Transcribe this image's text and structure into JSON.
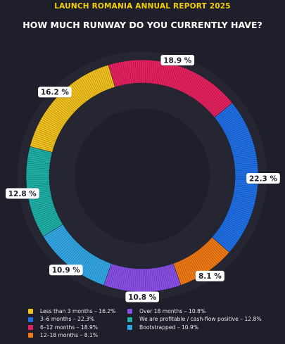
{
  "header": {
    "report_title": "LAUNCH ROMANIA ANNUAL REPORT 2025"
  },
  "chart_data": {
    "type": "pie",
    "title": "HOW MUCH RUNWAY DO YOU CURRENTLY HAVE?",
    "unit": "%",
    "legend_position": "bottom",
    "slices": [
      {
        "label": "18.9 %",
        "legend": "6–12 months – 18.9%",
        "value": 18.9,
        "color": "#e6215f"
      },
      {
        "label": "22.3 %",
        "legend": "3–6 months – 22.3%",
        "value": 22.3,
        "color": "#1f6fe6"
      },
      {
        "label": "8.1 %",
        "legend": "12–18 months – 8.1%",
        "value": 8.1,
        "color": "#f07a14"
      },
      {
        "label": "10.8 %",
        "legend": "Over 18 months – 10.8%",
        "value": 10.8,
        "color": "#8a4fe6"
      },
      {
        "label": "10.9 %",
        "legend": "Bootstrapped – 10.9%",
        "value": 10.9,
        "color": "#32a8e6"
      },
      {
        "label": "12.8 %",
        "legend": "We are profitable / cash-flow positive – 12.8%",
        "value": 12.8,
        "color": "#1eb0a6"
      },
      {
        "label": "16.2 %",
        "legend": "Less than 3 months – 16.2%",
        "value": 16.2,
        "color": "#f2c21e"
      }
    ],
    "legend_order": [
      6,
      1,
      0,
      2,
      3,
      5,
      4
    ]
  }
}
